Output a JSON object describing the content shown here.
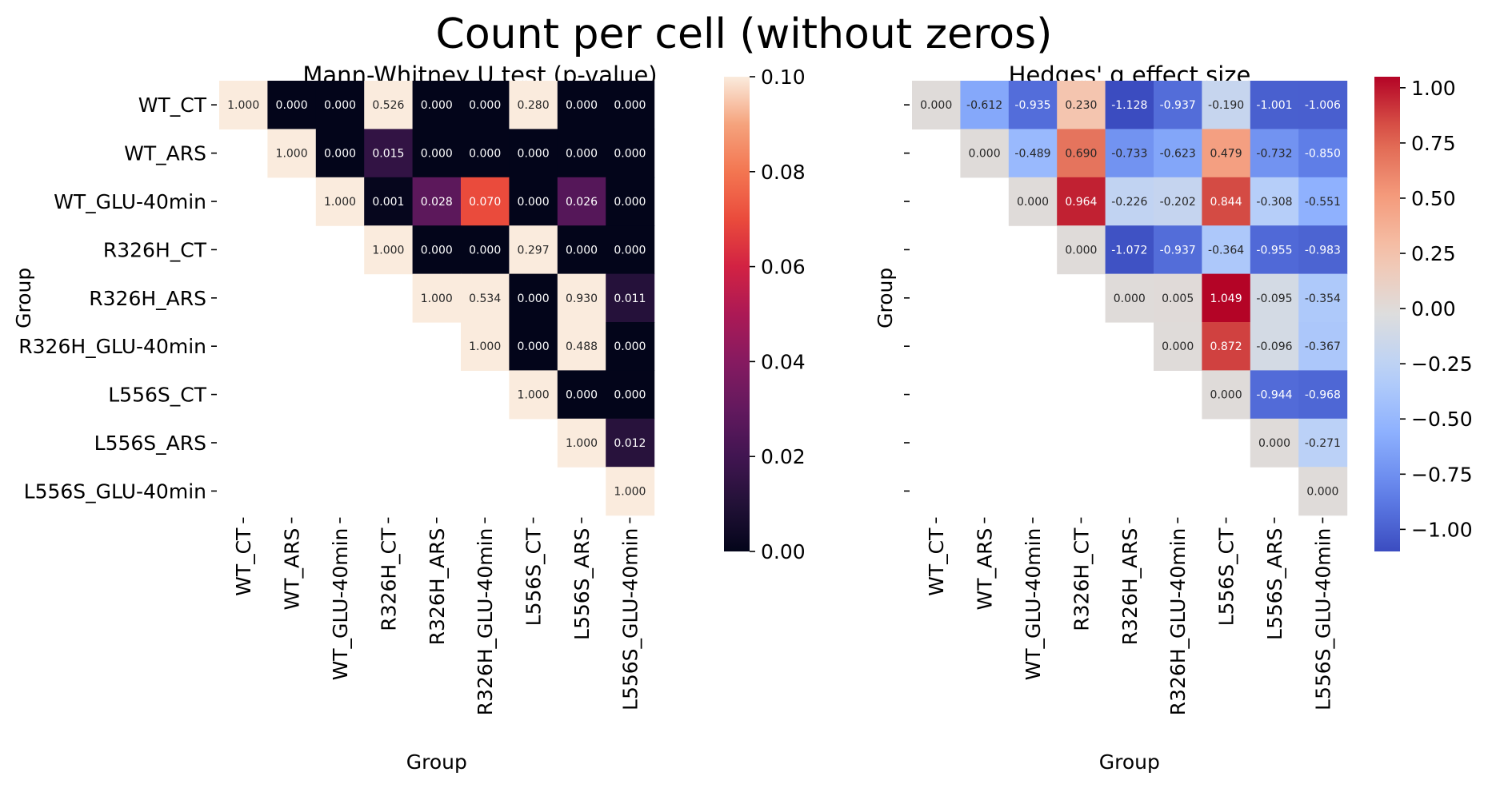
{
  "figure_title": "Count per cell (without zeros)",
  "chart_data": [
    {
      "type": "heatmap",
      "title": "Mann-Whitney U test (p-value)",
      "xlabel": "Group",
      "ylabel": "Group",
      "categories": [
        "WT_CT",
        "WT_ARS",
        "WT_GLU-40min",
        "R326H_CT",
        "R326H_ARS",
        "R326H_GLU-40min",
        "L556S_CT",
        "L556S_ARS",
        "L556S_GLU-40min"
      ],
      "colormap": "rocket",
      "vmin": 0.0,
      "vmax": 0.1,
      "colorbar_ticks": [
        "0.00",
        "0.02",
        "0.04",
        "0.06",
        "0.08",
        "0.10"
      ],
      "show_row_tick_labels": true,
      "matrix": [
        [
          "1.000",
          "0.000",
          "0.000",
          "0.526",
          "0.000",
          "0.000",
          "0.280",
          "0.000",
          "0.000"
        ],
        [
          null,
          "1.000",
          "0.000",
          "0.015",
          "0.000",
          "0.000",
          "0.000",
          "0.000",
          "0.000"
        ],
        [
          null,
          null,
          "1.000",
          "0.001",
          "0.028",
          "0.070",
          "0.000",
          "0.026",
          "0.000"
        ],
        [
          null,
          null,
          null,
          "1.000",
          "0.000",
          "0.000",
          "0.297",
          "0.000",
          "0.000"
        ],
        [
          null,
          null,
          null,
          null,
          "1.000",
          "0.534",
          "0.000",
          "0.930",
          "0.011"
        ],
        [
          null,
          null,
          null,
          null,
          null,
          "1.000",
          "0.000",
          "0.488",
          "0.000"
        ],
        [
          null,
          null,
          null,
          null,
          null,
          null,
          "1.000",
          "0.000",
          "0.000"
        ],
        [
          null,
          null,
          null,
          null,
          null,
          null,
          null,
          "1.000",
          "0.012"
        ],
        [
          null,
          null,
          null,
          null,
          null,
          null,
          null,
          null,
          "1.000"
        ]
      ]
    },
    {
      "type": "heatmap",
      "title": "Hedges' g effect size",
      "xlabel": "Group",
      "ylabel": "Group",
      "categories": [
        "WT_CT",
        "WT_ARS",
        "WT_GLU-40min",
        "R326H_CT",
        "R326H_ARS",
        "R326H_GLU-40min",
        "L556S_CT",
        "L556S_ARS",
        "L556S_GLU-40min"
      ],
      "colormap": "coolwarm",
      "vmin": -1.1,
      "vmax": 1.05,
      "colorbar_ticks": [
        "1.00",
        "0.75",
        "0.50",
        "0.25",
        "0.00",
        "−0.25",
        "−0.50",
        "−0.75",
        "−1.00"
      ],
      "colorbar_tick_values": [
        1.0,
        0.75,
        0.5,
        0.25,
        0.0,
        -0.25,
        -0.5,
        -0.75,
        -1.0
      ],
      "show_row_tick_labels": false,
      "matrix": [
        [
          "0.000",
          "-0.612",
          "-0.935",
          "0.230",
          "-1.128",
          "-0.937",
          "-0.190",
          "-1.001",
          "-1.006"
        ],
        [
          null,
          "0.000",
          "-0.489",
          "0.690",
          "-0.733",
          "-0.623",
          "0.479",
          "-0.732",
          "-0.850"
        ],
        [
          null,
          null,
          "0.000",
          "0.964",
          "-0.226",
          "-0.202",
          "0.844",
          "-0.308",
          "-0.551"
        ],
        [
          null,
          null,
          null,
          "0.000",
          "-1.072",
          "-0.937",
          "-0.364",
          "-0.955",
          "-0.983"
        ],
        [
          null,
          null,
          null,
          null,
          "0.000",
          "0.005",
          "1.049",
          "-0.095",
          "-0.354"
        ],
        [
          null,
          null,
          null,
          null,
          null,
          "0.000",
          "0.872",
          "-0.096",
          "-0.367"
        ],
        [
          null,
          null,
          null,
          null,
          null,
          null,
          "0.000",
          "-0.944",
          "-0.968"
        ],
        [
          null,
          null,
          null,
          null,
          null,
          null,
          null,
          "0.000",
          "-0.271"
        ],
        [
          null,
          null,
          null,
          null,
          null,
          null,
          null,
          null,
          "0.000"
        ]
      ]
    }
  ]
}
